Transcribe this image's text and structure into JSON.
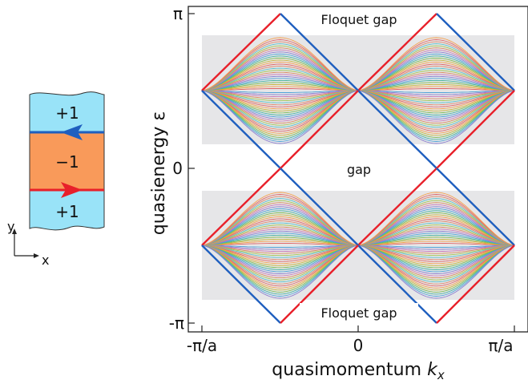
{
  "strip": {
    "top_label": "+1",
    "middle_label": "−1",
    "bottom_label": "+1",
    "colors": {
      "outer": "#99e3f8",
      "inner": "#f99a5a",
      "edge_blue": "#1f5fbf",
      "edge_red": "#e8202a"
    }
  },
  "axes_indicator": {
    "y": "y",
    "x": "x"
  },
  "spectrum": {
    "y_ticks": {
      "pi": "π",
      "zero": "0",
      "minus_pi": "-π"
    },
    "x_ticks": {
      "minus_pi_a": "-π/a",
      "zero": "0",
      "pi_a": "π/a"
    },
    "y_title": "quasienergy  ε",
    "x_title_main": "quasimomentum ",
    "x_title_var": "k",
    "x_title_sub": "x",
    "labels": {
      "floquet_gap_top": "Floquet gap",
      "gap_middle": "gap",
      "floquet_gap_bottom": "Floquet gap"
    },
    "colors": {
      "edge_red": "#e8202a",
      "edge_blue": "#1f5fbf",
      "band_bg": "#e6e6e8",
      "frame": "#222222"
    }
  }
}
